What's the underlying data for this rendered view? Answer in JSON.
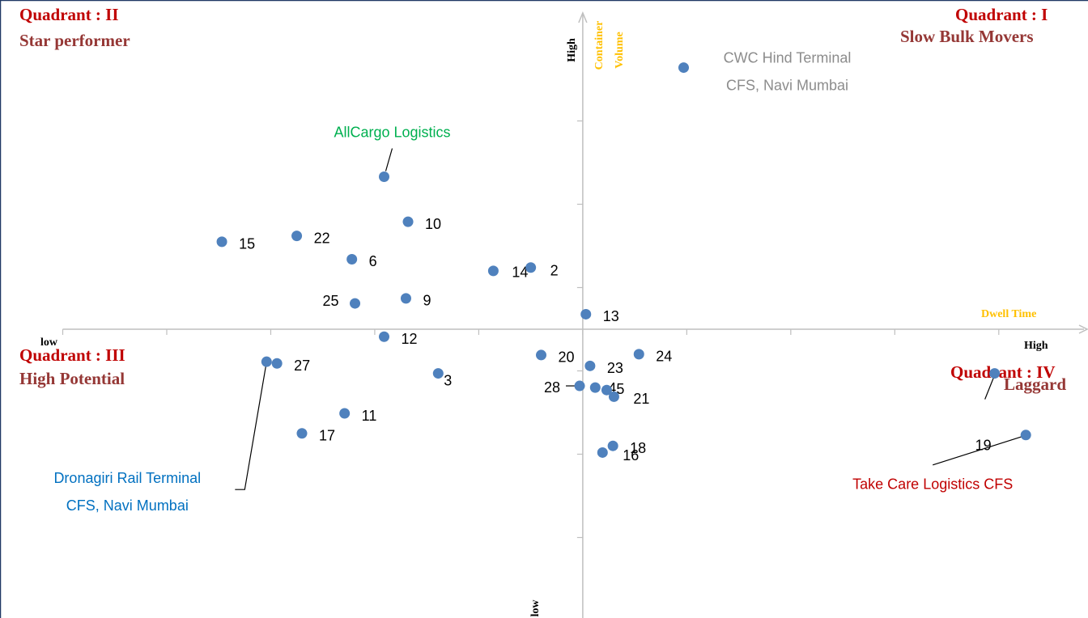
{
  "chart_data": {
    "type": "scatter",
    "point_color": "#4f81bd",
    "xlim": [
      -5,
      4.85
    ],
    "ylim": [
      -3.5,
      3.5
    ],
    "xticks": [
      -5,
      -4,
      -3,
      -2,
      -1,
      0,
      1,
      2,
      3,
      4
    ],
    "yticks": [
      -2.5,
      -1.5,
      -0.5,
      0.5,
      1.5,
      2.5
    ],
    "x_axis": {
      "label": "Dwell Time",
      "low": "low",
      "high": "High"
    },
    "y_axis": {
      "label": [
        "Container",
        "Volume"
      ],
      "low": "low",
      "high": "High"
    },
    "quadrants": [
      {
        "title": "Quadrant : I",
        "name": "Slow Bulk Movers"
      },
      {
        "title": "Quadrant : II",
        "name": "Star performer"
      },
      {
        "title": "Quadrant : III",
        "name": "High Potential"
      },
      {
        "title": "Quadrant : IV",
        "name": "Laggard"
      }
    ],
    "points": [
      {
        "label": [
          "CWC Hind Terminal",
          "CFS, Navi Mumbai"
        ],
        "label_color": "#8c8c8c",
        "x": 0.97,
        "y": 3.14
      },
      {
        "label": "AllCargo Logistics",
        "label_color": "#00b050",
        "x": -1.91,
        "y": 1.83
      },
      {
        "label": "10",
        "x": -1.68,
        "y": 1.29
      },
      {
        "label": "15",
        "x": -3.47,
        "y": 1.05
      },
      {
        "label": "22",
        "x": -2.75,
        "y": 1.12
      },
      {
        "label": "6",
        "x": -2.22,
        "y": 0.84
      },
      {
        "label": "14",
        "x": -0.86,
        "y": 0.7
      },
      {
        "label": "2",
        "x": -0.5,
        "y": 0.74
      },
      {
        "label": "25",
        "x": -2.19,
        "y": 0.31
      },
      {
        "label": "9",
        "x": -1.7,
        "y": 0.37
      },
      {
        "label": "13",
        "x": 0.03,
        "y": 0.18
      },
      {
        "label": "12",
        "x": -1.91,
        "y": -0.09
      },
      {
        "label": [
          "Dronagiri Rail Terminal",
          "CFS, Navi Mumbai"
        ],
        "label_color": "#0070c0",
        "x": -3.04,
        "y": -0.39
      },
      {
        "label": "27",
        "x": -2.94,
        "y": -0.41
      },
      {
        "label": "3",
        "x": -1.39,
        "y": -0.53
      },
      {
        "label": "20",
        "x": -0.4,
        "y": -0.31
      },
      {
        "label": "23",
        "x": 0.07,
        "y": -0.44
      },
      {
        "label": "24",
        "x": 0.54,
        "y": -0.3
      },
      {
        "label": "28",
        "x": -0.03,
        "y": -0.68
      },
      {
        "label": "4",
        "x": 0.12,
        "y": -0.7
      },
      {
        "label": "5",
        "x": 0.23,
        "y": -0.73
      },
      {
        "label": "21",
        "x": 0.3,
        "y": -0.81
      },
      {
        "label": "11",
        "x": -2.29,
        "y": -1.01
      },
      {
        "label": "17",
        "x": -2.7,
        "y": -1.25
      },
      {
        "label": "18",
        "x": 0.29,
        "y": -1.4
      },
      {
        "label": "16",
        "x": 0.19,
        "y": -1.48
      },
      {
        "label": "19",
        "x": 3.96,
        "y": -0.53
      },
      {
        "label": "Take Care Logistics CFS",
        "label_color": "#c00000",
        "x": 4.26,
        "y": -1.27
      }
    ]
  }
}
